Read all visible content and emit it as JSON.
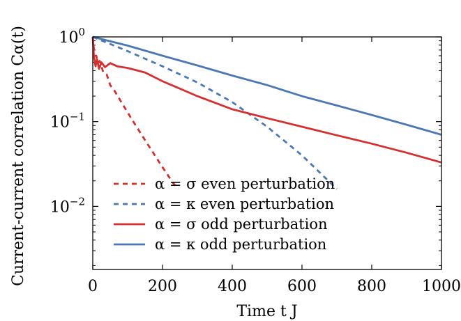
{
  "chart_data": {
    "type": "line",
    "xlabel": "Time t J",
    "ylabel": "Current-current correlation Cα(t)",
    "xlim": [
      0,
      1000
    ],
    "ylim": [
      0.0018,
      1.0
    ],
    "yscale": "log",
    "grid": false,
    "legend_position": "bottom-left",
    "x_ticks": [
      0,
      200,
      400,
      600,
      800,
      1000
    ],
    "x_tick_labels": [
      "0",
      "200",
      "400",
      "600",
      "800",
      "1000"
    ],
    "y_ticks": [
      1,
      0.1,
      0.01
    ],
    "y_tick_labels": [
      {
        "base": "10",
        "exp": "0"
      },
      {
        "base": "10",
        "exp": "−1"
      },
      {
        "base": "10",
        "exp": "−2"
      }
    ],
    "series": [
      {
        "name": "α = σ even perturbation",
        "color": "#d62f2f",
        "dash": true,
        "x": [
          0,
          5,
          10,
          15,
          20,
          25,
          30,
          40,
          50,
          60,
          75,
          90,
          110,
          140,
          170,
          200,
          230,
          245
        ],
        "y": [
          1.0,
          0.6,
          0.6,
          0.5,
          0.52,
          0.45,
          0.38,
          0.36,
          0.27,
          0.24,
          0.19,
          0.15,
          0.11,
          0.07,
          0.045,
          0.029,
          0.019,
          0.016
        ]
      },
      {
        "name": "α = κ even perturbation",
        "color": "#4a78b5",
        "dash": true,
        "x": [
          0,
          100,
          200,
          300,
          400,
          500,
          600,
          700
        ],
        "y": [
          1.0,
          0.68,
          0.45,
          0.29,
          0.17,
          0.087,
          0.04,
          0.016
        ]
      },
      {
        "name": "α = σ odd perturbation",
        "color": "#d62f2f",
        "dash": false,
        "x": [
          0,
          3,
          8,
          12,
          18,
          25,
          35,
          50,
          70,
          100,
          150,
          200,
          300,
          400,
          500,
          600,
          700,
          800,
          900,
          1000
        ],
        "y": [
          1.0,
          0.6,
          0.45,
          0.55,
          0.42,
          0.5,
          0.44,
          0.49,
          0.45,
          0.43,
          0.38,
          0.3,
          0.2,
          0.14,
          0.11,
          0.087,
          0.069,
          0.055,
          0.043,
          0.033
        ]
      },
      {
        "name": "α = κ odd perturbation",
        "color": "#4a78b5",
        "dash": false,
        "x": [
          0,
          100,
          200,
          300,
          400,
          500,
          600,
          700,
          800,
          900,
          1000
        ],
        "y": [
          1.0,
          0.79,
          0.6,
          0.46,
          0.35,
          0.27,
          0.2,
          0.155,
          0.12,
          0.092,
          0.07
        ]
      }
    ]
  }
}
